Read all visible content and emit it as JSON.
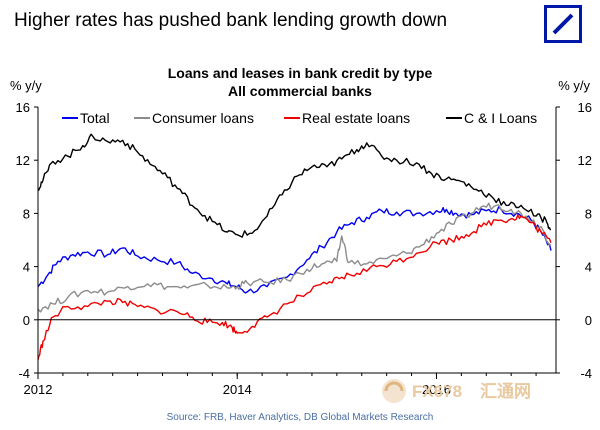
{
  "headline": "Higher rates has pushed bank lending growth down",
  "logo": {
    "icon": "deutsche-bank-logo",
    "color": "#0018a8"
  },
  "watermark": {
    "text_latin": "FX678",
    "text_cn": "汇通网",
    "color": "#e8c9a0"
  },
  "source": "Source: FRB, Haver Analytics, DB Global Markets Research",
  "chart_data": {
    "type": "line",
    "title": "Loans and leases in bank credit by type",
    "subtitle": "All commercial banks",
    "ylabel_left": "% y/y",
    "ylabel_right": "% y/y",
    "ylim": [
      -4,
      16
    ],
    "yticks": [
      -4,
      0,
      4,
      8,
      12,
      16
    ],
    "xlim": [
      2012.0,
      2017.2
    ],
    "xticks": [
      {
        "value": 2012.0,
        "label": "2012"
      },
      {
        "value": 2014.0,
        "label": "2014"
      },
      {
        "value": 2016.0,
        "label": "2016"
      }
    ],
    "grid": false,
    "legend_position": "top",
    "series": [
      {
        "name": "Total",
        "color": "#0000ee",
        "points": [
          [
            2012.0,
            2.5
          ],
          [
            2012.1,
            3.4
          ],
          [
            2012.2,
            4.4
          ],
          [
            2012.35,
            4.9
          ],
          [
            2012.5,
            5.1
          ],
          [
            2012.7,
            4.9
          ],
          [
            2012.85,
            5.4
          ],
          [
            2013.0,
            4.8
          ],
          [
            2013.2,
            4.5
          ],
          [
            2013.4,
            4.3
          ],
          [
            2013.55,
            3.5
          ],
          [
            2013.75,
            3.1
          ],
          [
            2013.9,
            2.7
          ],
          [
            2014.0,
            2.5
          ],
          [
            2014.1,
            2.1
          ],
          [
            2014.3,
            2.5
          ],
          [
            2014.5,
            3.2
          ],
          [
            2014.7,
            4.5
          ],
          [
            2014.85,
            5.5
          ],
          [
            2015.0,
            6.6
          ],
          [
            2015.15,
            7.3
          ],
          [
            2015.3,
            7.7
          ],
          [
            2015.45,
            8.2
          ],
          [
            2015.6,
            8.1
          ],
          [
            2015.8,
            8.0
          ],
          [
            2016.0,
            8.2
          ],
          [
            2016.1,
            8.3
          ],
          [
            2016.2,
            8.0
          ],
          [
            2016.35,
            7.9
          ],
          [
            2016.5,
            8.2
          ],
          [
            2016.65,
            8.3
          ],
          [
            2016.8,
            8.0
          ],
          [
            2016.95,
            7.5
          ],
          [
            2017.05,
            6.6
          ],
          [
            2017.15,
            5.2
          ]
        ]
      },
      {
        "name": "Consumer loans",
        "color": "#8c8c8c",
        "points": [
          [
            2012.0,
            0.8
          ],
          [
            2012.15,
            1.2
          ],
          [
            2012.3,
            1.7
          ],
          [
            2012.5,
            2.2
          ],
          [
            2012.7,
            2.1
          ],
          [
            2012.9,
            2.5
          ],
          [
            2013.1,
            2.7
          ],
          [
            2013.3,
            2.5
          ],
          [
            2013.5,
            2.4
          ],
          [
            2013.7,
            2.6
          ],
          [
            2013.9,
            2.4
          ],
          [
            2014.0,
            2.5
          ],
          [
            2014.1,
            2.8
          ],
          [
            2014.3,
            2.8
          ],
          [
            2014.5,
            3.0
          ],
          [
            2014.7,
            3.8
          ],
          [
            2014.85,
            4.2
          ],
          [
            2015.0,
            4.4
          ],
          [
            2015.05,
            6.3
          ],
          [
            2015.12,
            4.3
          ],
          [
            2015.3,
            4.2
          ],
          [
            2015.5,
            4.6
          ],
          [
            2015.7,
            5.0
          ],
          [
            2015.85,
            5.6
          ],
          [
            2016.0,
            6.5
          ],
          [
            2016.15,
            7.2
          ],
          [
            2016.3,
            7.8
          ],
          [
            2016.45,
            8.5
          ],
          [
            2016.6,
            8.6
          ],
          [
            2016.75,
            8.3
          ],
          [
            2016.9,
            7.8
          ],
          [
            2017.05,
            7.0
          ],
          [
            2017.15,
            5.6
          ]
        ]
      },
      {
        "name": "Real estate loans",
        "color": "#ee0000",
        "points": [
          [
            2012.0,
            -3.0
          ],
          [
            2012.05,
            -1.6
          ],
          [
            2012.15,
            0.2
          ],
          [
            2012.3,
            1.0
          ],
          [
            2012.5,
            1.0
          ],
          [
            2012.7,
            1.4
          ],
          [
            2012.85,
            1.3
          ],
          [
            2013.0,
            1.0
          ],
          [
            2013.2,
            0.7
          ],
          [
            2013.4,
            0.6
          ],
          [
            2013.55,
            0.2
          ],
          [
            2013.7,
            -0.2
          ],
          [
            2013.85,
            -0.2
          ],
          [
            2013.95,
            -0.6
          ],
          [
            2014.0,
            -1.0
          ],
          [
            2014.15,
            -0.5
          ],
          [
            2014.3,
            0.2
          ],
          [
            2014.5,
            1.2
          ],
          [
            2014.7,
            2.0
          ],
          [
            2014.9,
            2.7
          ],
          [
            2015.05,
            3.2
          ],
          [
            2015.2,
            3.5
          ],
          [
            2015.4,
            4.0
          ],
          [
            2015.6,
            4.4
          ],
          [
            2015.8,
            5.0
          ],
          [
            2016.0,
            5.8
          ],
          [
            2016.15,
            6.0
          ],
          [
            2016.3,
            6.4
          ],
          [
            2016.45,
            7.0
          ],
          [
            2016.6,
            7.5
          ],
          [
            2016.75,
            7.6
          ],
          [
            2016.85,
            7.8
          ],
          [
            2016.95,
            7.3
          ],
          [
            2017.05,
            6.6
          ],
          [
            2017.15,
            5.8
          ]
        ]
      },
      {
        "name": "C & I Loans",
        "color": "#000000",
        "points": [
          [
            2012.0,
            9.9
          ],
          [
            2012.05,
            10.5
          ],
          [
            2012.15,
            11.9
          ],
          [
            2012.3,
            12.3
          ],
          [
            2012.45,
            13.1
          ],
          [
            2012.55,
            13.8
          ],
          [
            2012.7,
            13.4
          ],
          [
            2012.85,
            13.5
          ],
          [
            2013.0,
            12.6
          ],
          [
            2013.15,
            11.6
          ],
          [
            2013.3,
            10.7
          ],
          [
            2013.45,
            9.5
          ],
          [
            2013.6,
            8.3
          ],
          [
            2013.75,
            7.4
          ],
          [
            2013.9,
            6.6
          ],
          [
            2014.0,
            6.4
          ],
          [
            2014.15,
            6.5
          ],
          [
            2014.3,
            7.8
          ],
          [
            2014.45,
            9.4
          ],
          [
            2014.6,
            10.8
          ],
          [
            2014.75,
            11.5
          ],
          [
            2014.9,
            11.5
          ],
          [
            2015.05,
            12.1
          ],
          [
            2015.2,
            12.8
          ],
          [
            2015.3,
            13.3
          ],
          [
            2015.45,
            12.3
          ],
          [
            2015.6,
            12.0
          ],
          [
            2015.8,
            11.8
          ],
          [
            2015.95,
            11.0
          ],
          [
            2016.1,
            10.6
          ],
          [
            2016.25,
            10.4
          ],
          [
            2016.4,
            9.8
          ],
          [
            2016.55,
            9.3
          ],
          [
            2016.7,
            8.6
          ],
          [
            2016.85,
            8.6
          ],
          [
            2017.0,
            7.8
          ],
          [
            2017.1,
            7.5
          ],
          [
            2017.15,
            6.8
          ]
        ]
      }
    ]
  }
}
